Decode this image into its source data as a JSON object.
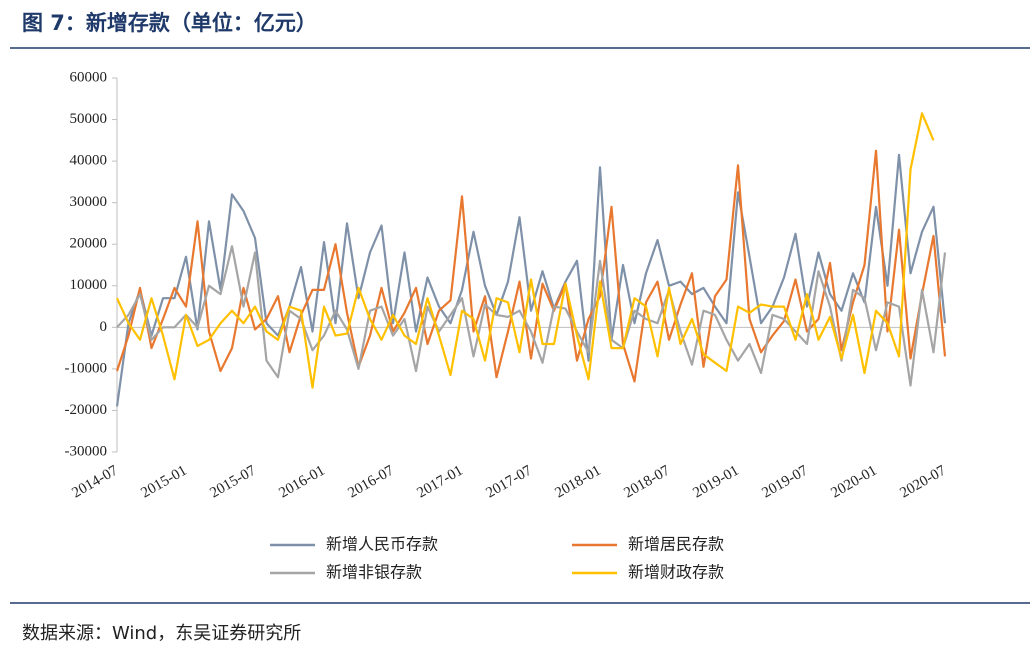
{
  "chart_data": {
    "type": "line",
    "title": "图 7：新增存款（单位：亿元）",
    "source": "数据来源：Wind，东吴证券研究所",
    "categories": [
      "2014-07",
      null,
      null,
      null,
      null,
      null,
      "2015-01",
      null,
      null,
      null,
      null,
      null,
      "2015-07",
      null,
      null,
      null,
      null,
      null,
      "2016-01",
      null,
      null,
      null,
      null,
      null,
      "2016-07",
      null,
      null,
      null,
      null,
      null,
      "2017-01",
      null,
      null,
      null,
      null,
      null,
      "2017-07",
      null,
      null,
      null,
      null,
      null,
      "2018-01",
      null,
      null,
      null,
      null,
      null,
      "2018-07",
      null,
      null,
      null,
      null,
      null,
      "2019-01",
      null,
      null,
      null,
      null,
      null,
      "2019-07",
      null,
      null,
      null,
      null,
      null,
      "2020-01",
      null,
      null,
      null,
      null,
      null,
      "2020-07"
    ],
    "ylim": [
      -30000,
      60000
    ],
    "yticks": [
      -30000,
      -20000,
      -10000,
      0,
      10000,
      20000,
      30000,
      40000,
      50000,
      60000
    ],
    "legend": "bottom",
    "series": [
      {
        "name": "新增人民币存款",
        "color": "#7f91a8",
        "values": [
          -19000,
          1000,
          9000,
          -2000,
          7000,
          7000,
          17000,
          -500,
          25500,
          9000,
          32000,
          28000,
          21500,
          1000,
          -2000,
          5000,
          14500,
          -1000,
          20500,
          1000,
          25000,
          7000,
          18000,
          24500,
          1000,
          18000,
          -1000,
          12000,
          5000,
          1000,
          9000,
          23000,
          10000,
          3000,
          11000,
          26500,
          4000,
          13500,
          4500,
          11000,
          16000,
          -8000,
          38500,
          -3000,
          15000,
          1000,
          13000,
          21000,
          10000,
          11000,
          8000,
          9500,
          5000,
          1000,
          32500,
          17000,
          1000,
          5000,
          12000,
          22500,
          5000,
          18000,
          8000,
          4000,
          13000,
          6000,
          29000,
          10000,
          41500,
          13000,
          23000,
          29000,
          1000
        ]
      },
      {
        "name": "新增居民存款",
        "color": "#e8782f",
        "values": [
          -10500,
          -2000,
          9500,
          -5000,
          2000,
          9500,
          5000,
          25500,
          -1000,
          -10500,
          -5000,
          9500,
          -500,
          2000,
          7500,
          -6000,
          3000,
          9000,
          9000,
          20000,
          3500,
          -9500,
          -2000,
          9500,
          -1000,
          3500,
          9500,
          -4000,
          4000,
          6500,
          31500,
          -1000,
          7500,
          -12000,
          -1000,
          11000,
          -7500,
          10500,
          4000,
          10500,
          -8000,
          2000,
          7500,
          29000,
          -4000,
          -13000,
          6000,
          11000,
          -3000,
          5500,
          13000,
          -9500,
          7500,
          11500,
          39000,
          2000,
          -6000,
          -2000,
          1500,
          11500,
          -1000,
          2000,
          15500,
          -5500,
          6000,
          15000,
          42500,
          -1000,
          23500,
          -7500,
          8000,
          22000,
          -7000
        ]
      },
      {
        "name": "新增非银存款",
        "color": "#a5a5a5",
        "values": [
          0,
          3000,
          8000,
          -3000,
          0,
          0,
          3000,
          0,
          10000,
          8000,
          19500,
          5000,
          18000,
          -8000,
          -12000,
          4000,
          2000,
          -5500,
          -2000,
          4000,
          -500,
          -10000,
          4000,
          5000,
          -2000,
          2000,
          -10500,
          5000,
          -1000,
          3000,
          7000,
          -7000,
          5500,
          3000,
          2500,
          4000,
          -1000,
          -8500,
          5000,
          4500,
          -1000,
          -6000,
          16000,
          -3000,
          -5000,
          4000,
          2000,
          1000,
          9000,
          -1000,
          -9000,
          4000,
          3000,
          -3000,
          -8000,
          -4000,
          -11000,
          3000,
          2000,
          -1000,
          -4000,
          13500,
          5000,
          -8000,
          9000,
          7000,
          -5500,
          6000,
          5000,
          -14000,
          9000,
          -6000,
          18000
        ]
      },
      {
        "name": "新增财政存款",
        "color": "#ffc000",
        "values": [
          7000,
          1000,
          -3000,
          7000,
          -2000,
          -12500,
          3000,
          -4500,
          -3000,
          1000,
          4000,
          1000,
          5000,
          -1000,
          -3000,
          5000,
          4000,
          -14500,
          5000,
          -2000,
          -1500,
          9500,
          2000,
          -3000,
          3000,
          -2000,
          -4000,
          7000,
          -2000,
          -11500,
          4000,
          2000,
          -8000,
          7000,
          6000,
          -6000,
          11500,
          -4000,
          -4000,
          10500,
          -2000,
          -12500,
          11000,
          -5000,
          -5000,
          7000,
          5000,
          -7000,
          9500,
          -4000,
          2000,
          -6500,
          -8500,
          -10500,
          5000,
          3500,
          5500,
          5000,
          5000,
          -3000,
          8000,
          -3000,
          2500,
          -7500,
          3000,
          -11000,
          4000,
          1000,
          -7000,
          38000,
          51500,
          45000,
          null
        ]
      }
    ]
  }
}
